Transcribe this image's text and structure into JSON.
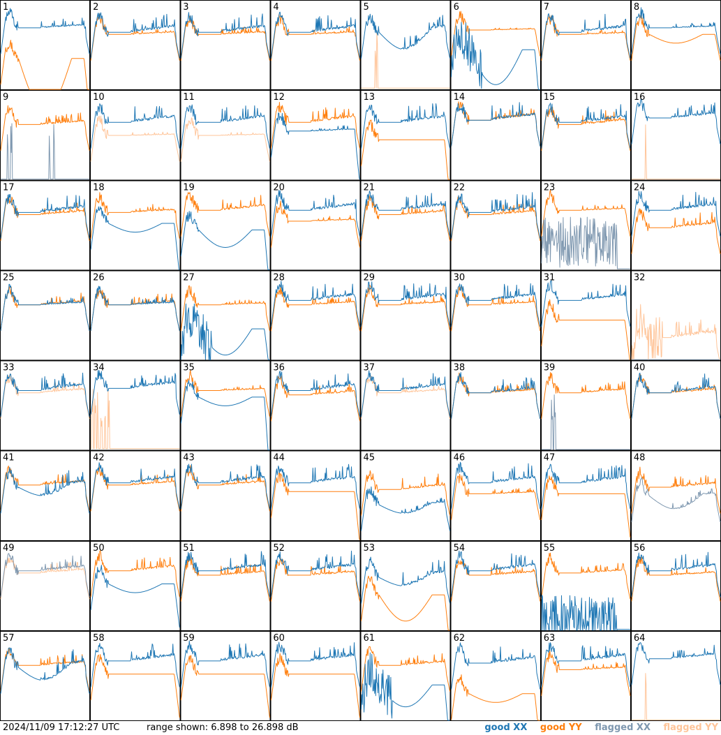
{
  "footer": {
    "timestamp": "2024/11/09 17:12:27 UTC",
    "range_text": "range shown: 6.898 to 26.898 dB",
    "legend": [
      {
        "label": "good XX",
        "color": "#1f77b4"
      },
      {
        "label": "good YY",
        "color": "#ff7f0e"
      },
      {
        "label": "flagged XX",
        "color": "#7f98b0"
      },
      {
        "label": "flagged YY",
        "color": "#ffc59a"
      }
    ]
  },
  "chart_data": {
    "type": "line",
    "grid": {
      "rows": 8,
      "cols": 8
    },
    "ylim_db": [
      6.898,
      26.898
    ],
    "series_colors": {
      "good_xx": "#1f77b4",
      "good_yy": "#ff7f0e",
      "flagged_xx": "#7f98b0",
      "flagged_yy": "#ffc59a"
    },
    "panels": [
      {
        "label": "1",
        "xx": {
          "status": "good",
          "base": 21,
          "spikes": 0.5
        },
        "yy": {
          "status": "good",
          "base": 14,
          "dip": 12,
          "edgeDrop": 6
        }
      },
      {
        "label": "2",
        "xx": {
          "status": "good",
          "base": 20,
          "spikes": 1
        },
        "yy": {
          "status": "good",
          "base": 19.5,
          "spikes": 0.4
        }
      },
      {
        "label": "3",
        "xx": {
          "status": "good",
          "base": 20,
          "spikes": 1
        },
        "yy": {
          "status": "good",
          "base": 19.5,
          "spikes": 0.4
        }
      },
      {
        "label": "4",
        "xx": {
          "status": "good",
          "base": 20,
          "spikes": 1
        },
        "yy": {
          "status": "good",
          "base": 19.5,
          "spikes": 0.4
        }
      },
      {
        "label": "5",
        "xx": {
          "status": "good",
          "base": 20,
          "spikes": 1,
          "dip": 4
        },
        "yy": {
          "status": "flagged",
          "shape": "flat",
          "level": 7.2,
          "spikeAt": [
            0.16,
            0.18
          ]
        }
      },
      {
        "label": "6",
        "xx": {
          "status": "good",
          "base": 16,
          "dip": 8,
          "noisy": 1,
          "edgeDrop": 8
        },
        "yy": {
          "status": "good",
          "base": 20.5,
          "spikes": 0.2
        }
      },
      {
        "label": "7",
        "xx": {
          "status": "good",
          "base": 20,
          "spikes": 1
        },
        "yy": {
          "status": "good",
          "base": 19.5,
          "spikes": 0.3
        }
      },
      {
        "label": "8",
        "xx": {
          "status": "good",
          "base": 21,
          "spikes": 0.3
        },
        "yy": {
          "status": "good",
          "base": 19.5,
          "dip": 2
        }
      },
      {
        "label": "9",
        "xx": {
          "status": "flagged",
          "shape": "flat",
          "level": 7,
          "spikeAt": [
            0.08,
            0.12,
            0.55,
            0.6
          ]
        },
        "yy": {
          "status": "good",
          "base": 19.5,
          "spikes": 0.6
        }
      },
      {
        "label": "10",
        "xx": {
          "status": "good",
          "base": 20,
          "spikes": 1
        },
        "yy": {
          "status": "flagged",
          "base": 17,
          "spikes": 0.2
        }
      },
      {
        "label": "11",
        "xx": {
          "status": "good",
          "base": 20,
          "spikes": 1
        },
        "yy": {
          "status": "flagged",
          "base": 17,
          "spikes": 0.2
        }
      },
      {
        "label": "12",
        "xx": {
          "status": "good",
          "base": 18,
          "spikes": 0.3,
          "edgeDrop": 6
        },
        "yy": {
          "status": "good",
          "base": 20,
          "spikes": 1
        }
      },
      {
        "label": "13",
        "xx": {
          "status": "good",
          "base": 20,
          "spikes": 1
        },
        "yy": {
          "status": "good",
          "base": 16,
          "edgeDrop": 8
        }
      },
      {
        "label": "14",
        "xx": {
          "status": "good",
          "base": 20.5,
          "spikes": 1
        },
        "yy": {
          "status": "good",
          "base": 20.5,
          "spikes": 1
        }
      },
      {
        "label": "15",
        "xx": {
          "status": "good",
          "base": 20,
          "spikes": 1
        },
        "yy": {
          "status": "good",
          "base": 19.5,
          "spikes": 0.8
        }
      },
      {
        "label": "16",
        "xx": {
          "status": "good",
          "base": 21,
          "spikes": 0.8
        },
        "yy": {
          "status": "flagged",
          "shape": "flat",
          "level": 7,
          "spikeAt": [
            0.16
          ]
        }
      },
      {
        "label": "17",
        "xx": {
          "status": "good",
          "base": 20,
          "spikes": 1
        },
        "yy": {
          "status": "good",
          "base": 19.5,
          "spikes": 0.6
        }
      },
      {
        "label": "18",
        "xx": {
          "status": "good",
          "base": 17.5,
          "dip": 2,
          "edgeDrop": 6
        },
        "yy": {
          "status": "good",
          "base": 20,
          "spikes": 0.5
        }
      },
      {
        "label": "19",
        "xx": {
          "status": "good",
          "base": 16,
          "dip": 4,
          "edgeDrop": 8
        },
        "yy": {
          "status": "good",
          "base": 20.5,
          "spikes": 0.8
        }
      },
      {
        "label": "20",
        "xx": {
          "status": "good",
          "base": 20.5,
          "spikes": 1
        },
        "yy": {
          "status": "good",
          "base": 18,
          "spikes": 0.3
        }
      },
      {
        "label": "21",
        "xx": {
          "status": "good",
          "base": 20.5,
          "spikes": 1
        },
        "yy": {
          "status": "good",
          "base": 19.5,
          "spikes": 0.6
        }
      },
      {
        "label": "22",
        "xx": {
          "status": "good",
          "base": 20,
          "spikes": 1
        },
        "yy": {
          "status": "good",
          "base": 19.5,
          "spikes": 0.6
        }
      },
      {
        "label": "23",
        "xx": {
          "status": "flagged",
          "shape": "noise",
          "level": 13
        },
        "yy": {
          "status": "good",
          "base": 20.5,
          "spikes": 0.3
        }
      },
      {
        "label": "24",
        "xx": {
          "status": "good",
          "base": 20.5,
          "spikes": 1
        },
        "yy": {
          "status": "good",
          "base": 16.5,
          "spikes": 0.8
        }
      },
      {
        "label": "25",
        "xx": {
          "status": "good",
          "base": 19.5,
          "spikes": 0.4
        },
        "yy": {
          "status": "good",
          "base": 19.5,
          "spikes": 0.6
        }
      },
      {
        "label": "26",
        "xx": {
          "status": "good",
          "base": 19.5,
          "spikes": 0.4
        },
        "yy": {
          "status": "good",
          "base": 19.5,
          "spikes": 0.6
        }
      },
      {
        "label": "27",
        "xx": {
          "status": "good",
          "base": 14,
          "dip": 6,
          "noisy": 1,
          "edgeDrop": 4
        },
        "yy": {
          "status": "good",
          "base": 19.5,
          "spikes": 0.3
        }
      },
      {
        "label": "28",
        "xx": {
          "status": "good",
          "base": 20.5,
          "spikes": 1
        },
        "yy": {
          "status": "good",
          "base": 19.5,
          "spikes": 0.5
        }
      },
      {
        "label": "29",
        "xx": {
          "status": "good",
          "base": 20.5,
          "spikes": 1
        },
        "yy": {
          "status": "good",
          "base": 19.5,
          "spikes": 0.5
        }
      },
      {
        "label": "30",
        "xx": {
          "status": "good",
          "base": 20.5,
          "spikes": 1
        },
        "yy": {
          "status": "good",
          "base": 19.5,
          "spikes": 0.5
        }
      },
      {
        "label": "31",
        "xx": {
          "status": "good",
          "base": 20.5,
          "spikes": 1
        },
        "yy": {
          "status": "good",
          "base": 16,
          "edgeDrop": 4
        }
      },
      {
        "label": "32",
        "xx": {
          "status": "flagged",
          "shape": "flat",
          "level": 6.95
        },
        "yy": {
          "status": "flagged",
          "base": 12,
          "spikes": 1,
          "noisy": 1
        }
      },
      {
        "label": "33",
        "xx": {
          "status": "good",
          "base": 20.5,
          "spikes": 1
        },
        "yy": {
          "status": "flagged",
          "base": 20,
          "spikes": 0.6
        }
      },
      {
        "label": "34",
        "xx": {
          "status": "good",
          "base": 21,
          "spikes": 1
        },
        "yy": {
          "status": "flagged",
          "shape": "flat",
          "level": 7.2,
          "spikeAt": [
            0.02,
            0.05,
            0.08,
            0.12,
            0.16,
            0.2
          ]
        }
      },
      {
        "label": "35",
        "xx": {
          "status": "good",
          "base": 19,
          "dip": 2,
          "edgeDrop": 12
        },
        "yy": {
          "status": "good",
          "base": 20.5,
          "spikes": 0.3
        }
      },
      {
        "label": "36",
        "xx": {
          "status": "good",
          "base": 20.5,
          "spikes": 1
        },
        "yy": {
          "status": "good",
          "base": 19.5,
          "spikes": 0.6
        }
      },
      {
        "label": "37",
        "xx": {
          "status": "good",
          "base": 20.5,
          "spikes": 1
        },
        "yy": {
          "status": "flagged",
          "base": 20,
          "spikes": 0.5
        }
      },
      {
        "label": "38",
        "xx": {
          "status": "good",
          "base": 20,
          "spikes": 0.8
        },
        "yy": {
          "status": "good",
          "base": 20,
          "spikes": 0.5
        }
      },
      {
        "label": "39",
        "xx": {
          "status": "flagged",
          "shape": "flat",
          "level": 7,
          "spikeAt": [
            0.12,
            0.15
          ]
        },
        "yy": {
          "status": "good",
          "base": 20,
          "spikes": 0.6
        }
      },
      {
        "label": "40",
        "xx": {
          "status": "good",
          "base": 20,
          "spikes": 1
        },
        "yy": {
          "status": "good",
          "base": 20,
          "spikes": 0.6
        }
      },
      {
        "label": "41",
        "xx": {
          "status": "good",
          "base": 19,
          "spikes": 1,
          "dip": 2
        },
        "yy": {
          "status": "good",
          "base": 19.5,
          "spikes": 0.7
        }
      },
      {
        "label": "42",
        "xx": {
          "status": "good",
          "base": 20,
          "spikes": 1
        },
        "yy": {
          "status": "good",
          "base": 19.5,
          "spikes": 0.6
        }
      },
      {
        "label": "43",
        "xx": {
          "status": "good",
          "base": 20,
          "spikes": 1
        },
        "yy": {
          "status": "good",
          "base": 19.5,
          "spikes": 0.6
        }
      },
      {
        "label": "44",
        "xx": {
          "status": "good",
          "base": 20,
          "spikes": 1
        },
        "yy": {
          "status": "good",
          "base": 18,
          "edgeDrop": 6
        }
      },
      {
        "label": "45",
        "xx": {
          "status": "good",
          "base": 15,
          "dip": 2,
          "spikes": 0.4
        },
        "yy": {
          "status": "good",
          "base": 18.5,
          "spikes": 0.8
        }
      },
      {
        "label": "46",
        "xx": {
          "status": "good",
          "base": 20,
          "spikes": 1
        },
        "yy": {
          "status": "good",
          "base": 17.5,
          "spikes": 0.3
        }
      },
      {
        "label": "47",
        "xx": {
          "status": "good",
          "base": 20,
          "spikes": 1
        },
        "yy": {
          "status": "good",
          "base": 17.5,
          "edgeDrop": 4
        }
      },
      {
        "label": "48",
        "xx": {
          "status": "flagged",
          "base": 17,
          "dip": 3,
          "spikes": 0.4
        },
        "yy": {
          "status": "good",
          "base": 19,
          "spikes": 0.7
        }
      },
      {
        "label": "49",
        "xx": {
          "status": "flagged",
          "base": 20.5,
          "spikes": 0.8
        },
        "yy": {
          "status": "flagged",
          "base": 20,
          "spikes": 0.6
        }
      },
      {
        "label": "50",
        "xx": {
          "status": "good",
          "base": 17.5,
          "dip": 2,
          "edgeDrop": 4
        },
        "yy": {
          "status": "good",
          "base": 20.5,
          "spikes": 0.8
        }
      },
      {
        "label": "51",
        "xx": {
          "status": "good",
          "base": 20.5,
          "spikes": 1
        },
        "yy": {
          "status": "good",
          "base": 19.5,
          "spikes": 0.6
        }
      },
      {
        "label": "52",
        "xx": {
          "status": "good",
          "base": 20.5,
          "spikes": 1
        },
        "yy": {
          "status": "good",
          "base": 19.5,
          "spikes": 0.6
        }
      },
      {
        "label": "53",
        "xx": {
          "status": "good",
          "base": 19,
          "spikes": 1,
          "dip": 2
        },
        "yy": {
          "status": "good",
          "base": 15,
          "dip": 6,
          "edgeDrop": 6
        }
      },
      {
        "label": "54",
        "xx": {
          "status": "good",
          "base": 20.5,
          "spikes": 1
        },
        "yy": {
          "status": "good",
          "base": 19.5,
          "spikes": 0.6
        }
      },
      {
        "label": "55",
        "xx": {
          "status": "good",
          "shape": "noise",
          "level": 9
        },
        "yy": {
          "status": "good",
          "base": 20,
          "spikes": 0.5
        }
      },
      {
        "label": "56",
        "xx": {
          "status": "good",
          "base": 20.5,
          "spikes": 1
        },
        "yy": {
          "status": "good",
          "base": 19.5,
          "spikes": 0.5
        }
      },
      {
        "label": "57",
        "xx": {
          "status": "good",
          "base": 19,
          "spikes": 1,
          "dip": 3
        },
        "yy": {
          "status": "good",
          "base": 19.5,
          "spikes": 0.6
        }
      },
      {
        "label": "58",
        "xx": {
          "status": "good",
          "base": 20.5,
          "spikes": 1
        },
        "yy": {
          "status": "good",
          "base": 17.5,
          "edgeDrop": 4
        }
      },
      {
        "label": "59",
        "xx": {
          "status": "good",
          "base": 20.5,
          "spikes": 1
        },
        "yy": {
          "status": "good",
          "base": 17.5,
          "edgeDrop": 4
        }
      },
      {
        "label": "60",
        "xx": {
          "status": "good",
          "base": 20.5,
          "spikes": 1
        },
        "yy": {
          "status": "good",
          "base": 17.5,
          "edgeDrop": 4
        }
      },
      {
        "label": "61",
        "xx": {
          "status": "good",
          "base": 15,
          "dip": 5,
          "noisy": 1,
          "edgeDrop": 8
        },
        "yy": {
          "status": "good",
          "base": 19.5,
          "spikes": 0.6
        }
      },
      {
        "label": "62",
        "xx": {
          "status": "good",
          "base": 20,
          "spikes": 1
        },
        "yy": {
          "status": "good",
          "base": 13,
          "dip": 2,
          "edgeDrop": 6
        }
      },
      {
        "label": "63",
        "xx": {
          "status": "good",
          "base": 20.5,
          "spikes": 1
        },
        "yy": {
          "status": "good",
          "base": 18.5,
          "spikes": 0.4
        }
      },
      {
        "label": "64",
        "xx": {
          "status": "good",
          "base": 21,
          "spikes": 0.8
        },
        "yy": {
          "status": "flagged",
          "shape": "flat",
          "level": 7,
          "spikeAt": [
            0.16
          ]
        }
      }
    ]
  }
}
